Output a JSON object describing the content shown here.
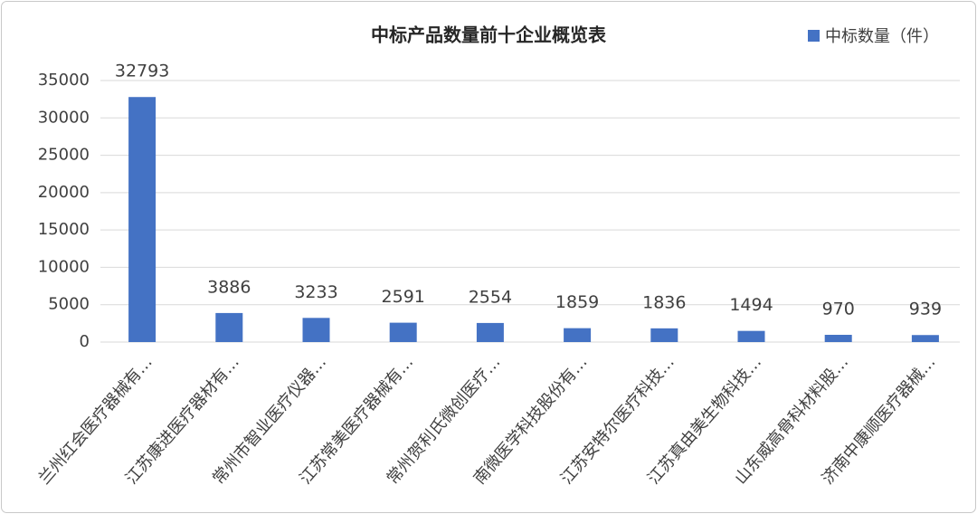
{
  "chart_data": {
    "type": "bar",
    "title": "中标产品数量前十企业概览表",
    "categories": [
      "兰州红会医疗器械有…",
      "江苏康进医疗器材有…",
      "常州市智业医疗仪器…",
      "江苏常美医疗器械有…",
      "常州贺利氏微创医疗…",
      "南微医学科技股份有…",
      "江苏安特尔医疗科技…",
      "江苏真由美生物科技…",
      "山东威高骨科材料股…",
      "济南中康顺医疗器械…"
    ],
    "series": [
      {
        "name": "中标数量（件）",
        "color": "#4472c4",
        "values": [
          32793,
          3886,
          3233,
          2591,
          2554,
          1859,
          1836,
          1494,
          970,
          939
        ]
      }
    ],
    "ylim": [
      0,
      35000
    ],
    "yticks": [
      0,
      5000,
      10000,
      15000,
      20000,
      25000,
      30000,
      35000
    ],
    "grid": true,
    "legend": "top-right"
  }
}
